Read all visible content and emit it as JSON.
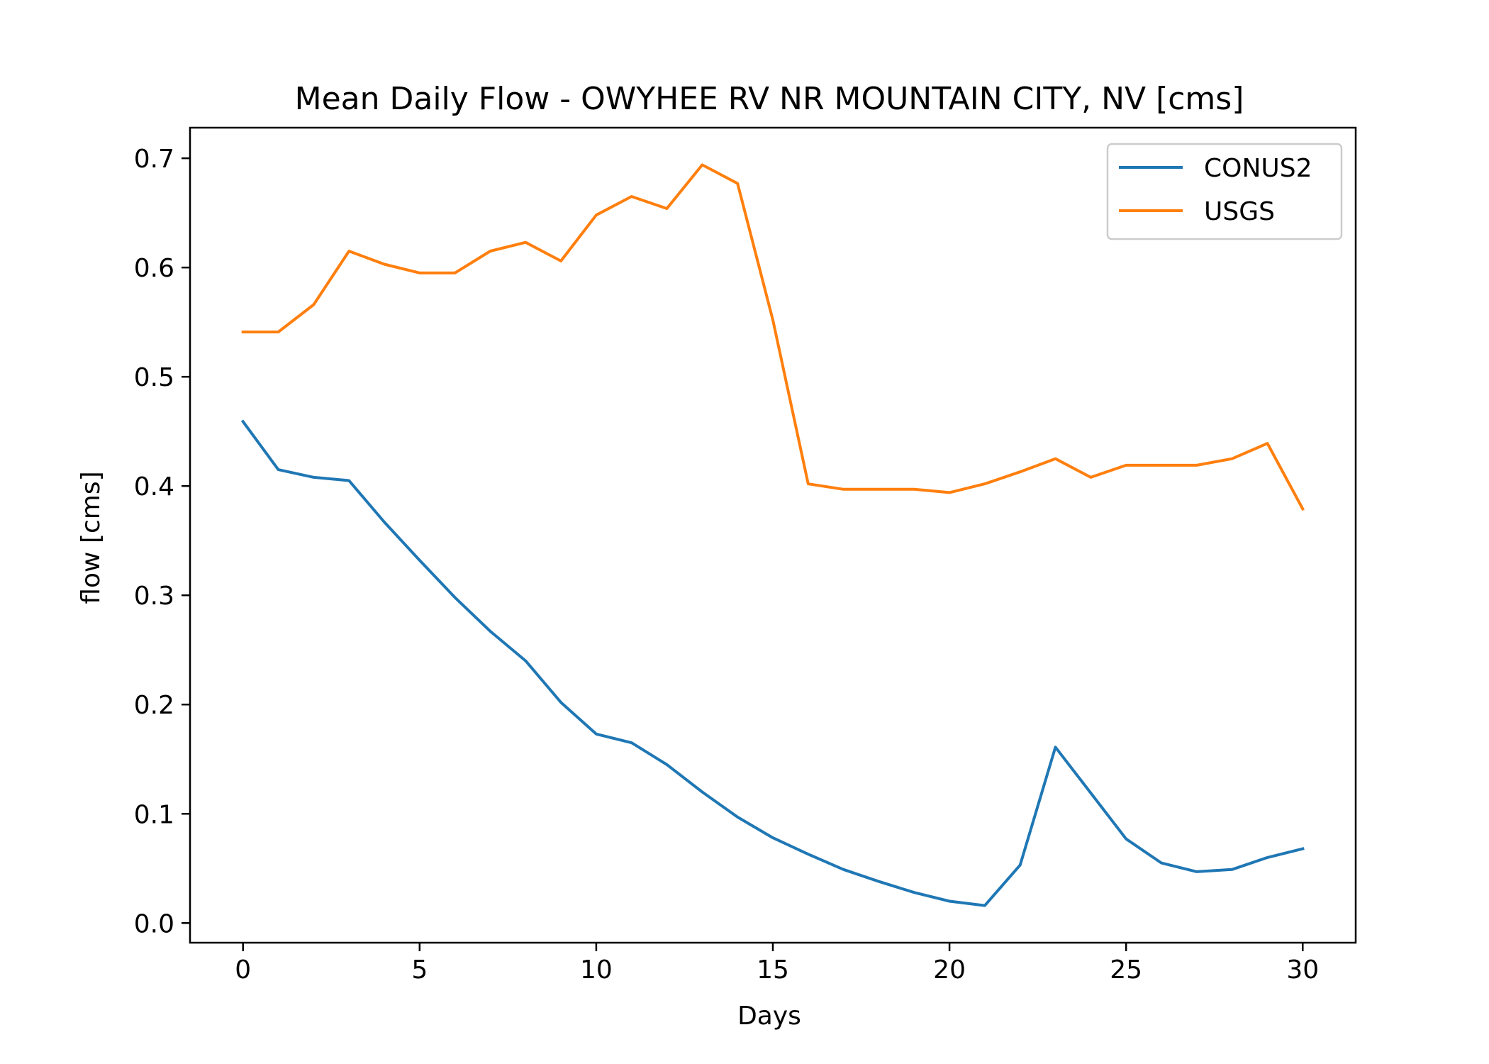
{
  "chart_data": {
    "type": "line",
    "title": "Mean Daily Flow - OWYHEE RV NR MOUNTAIN CITY, NV [cms]",
    "xlabel": "Days",
    "ylabel": "flow [cms]",
    "xlim": [
      -1.5,
      31.5
    ],
    "ylim": [
      -0.018,
      0.728
    ],
    "xticks": [
      0,
      5,
      10,
      15,
      20,
      25,
      30
    ],
    "xtick_labels": [
      "0",
      "5",
      "10",
      "15",
      "20",
      "25",
      "30"
    ],
    "yticks": [
      0.0,
      0.1,
      0.2,
      0.3,
      0.4,
      0.5,
      0.6,
      0.7
    ],
    "ytick_labels": [
      "0.0",
      "0.1",
      "0.2",
      "0.3",
      "0.4",
      "0.5",
      "0.6",
      "0.7"
    ],
    "grid": false,
    "legend_position": "upper right",
    "x": [
      0,
      1,
      2,
      3,
      4,
      5,
      6,
      7,
      8,
      9,
      10,
      11,
      12,
      13,
      14,
      15,
      16,
      17,
      18,
      19,
      20,
      21,
      22,
      23,
      24,
      25,
      26,
      27,
      28,
      29,
      30
    ],
    "series": [
      {
        "name": "CONUS2",
        "color": "#1f77b4",
        "values": [
          0.459,
          0.415,
          0.408,
          0.405,
          0.367,
          0.332,
          0.298,
          0.267,
          0.24,
          0.202,
          0.173,
          0.165,
          0.145,
          0.12,
          0.097,
          0.078,
          0.063,
          0.049,
          0.038,
          0.028,
          0.02,
          0.016,
          0.053,
          0.161,
          0.119,
          0.077,
          0.055,
          0.047,
          0.049,
          0.06,
          0.068
        ]
      },
      {
        "name": "USGS",
        "color": "#ff7f0e",
        "values": [
          0.541,
          0.541,
          0.566,
          0.615,
          0.603,
          0.595,
          0.595,
          0.615,
          0.623,
          0.606,
          0.648,
          0.665,
          0.654,
          0.694,
          0.677,
          0.552,
          0.402,
          0.397,
          0.397,
          0.397,
          0.394,
          0.402,
          0.413,
          0.425,
          0.408,
          0.419,
          0.419,
          0.419,
          0.425,
          0.439,
          0.379
        ]
      }
    ]
  }
}
